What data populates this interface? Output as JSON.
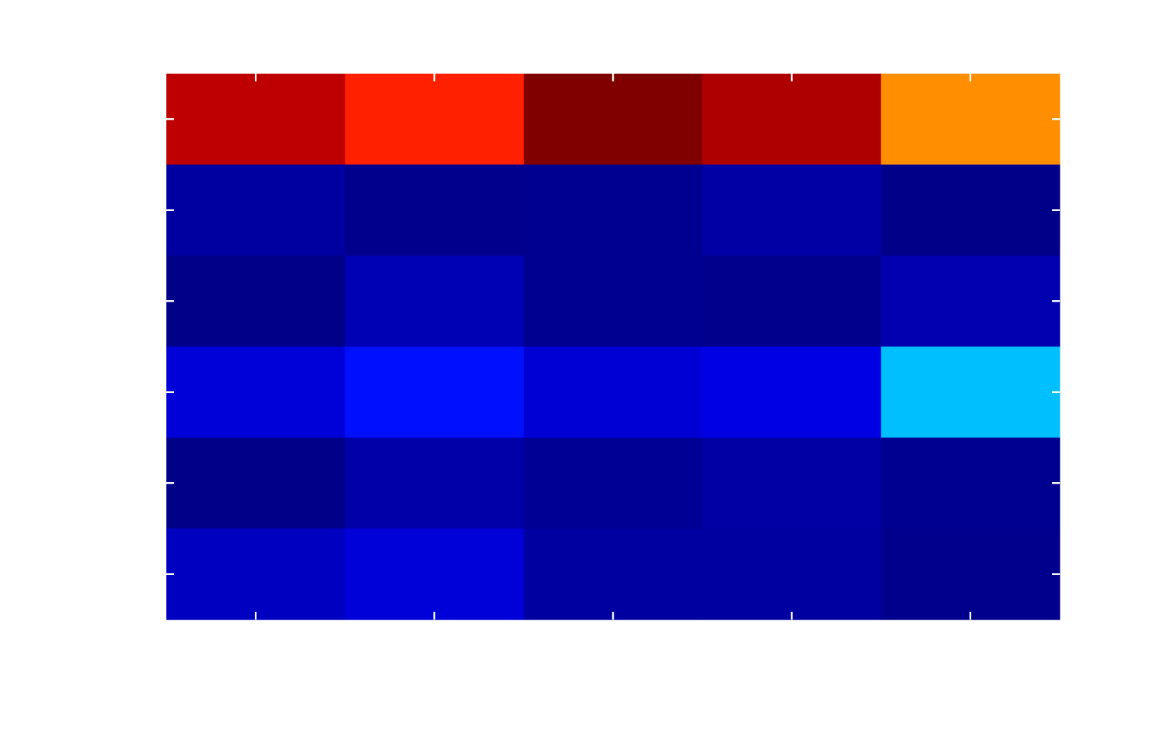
{
  "chart_data": {
    "type": "heatmap",
    "colormap": "jet",
    "grid": false,
    "rows": 6,
    "cols": 5,
    "cell_colors": [
      [
        "#bf0000",
        "#ff2000",
        "#800000",
        "#af0000",
        "#ff8f00"
      ],
      [
        "#0000a0",
        "#00008c",
        "#000090",
        "#0000a4",
        "#000088"
      ],
      [
        "#000088",
        "#0000b4",
        "#000090",
        "#00008c",
        "#0000b0"
      ],
      [
        "#0000d8",
        "#0010ff",
        "#0000d4",
        "#0000e4",
        "#00bfff"
      ],
      [
        "#000088",
        "#0000a8",
        "#000094",
        "#0000a4",
        "#000090"
      ],
      [
        "#0000c0",
        "#0000d8",
        "#0000a0",
        "#0000a0",
        "#00008c"
      ]
    ],
    "tick_color": "#ffffff"
  }
}
